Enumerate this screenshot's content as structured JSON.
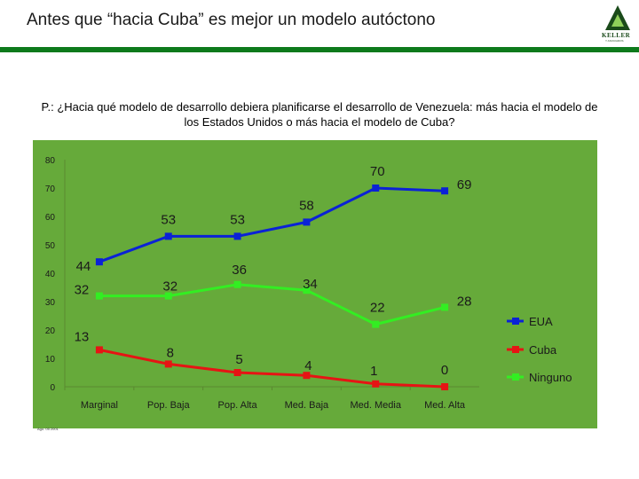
{
  "header": {
    "title": "Antes que “hacia Cuba” es mejor un modelo autóctono",
    "logo_text": "KELLER",
    "logo_sub": "Y ASOCIADOS"
  },
  "question": "P.: ¿Hacia qué modelo de desarrollo debiera planificarse el desarrollo de Venezuela: más hacia el modelo de los Estados Unidos o más hacia el modelo de Cuba?",
  "footnote": "Ago. 05 2001",
  "colors": {
    "eua": "#0b22d6",
    "cuba": "#e61414",
    "ninguno": "#33ee22",
    "panel": "#66aa3a",
    "rule": "#0d7a1c"
  },
  "chart_data": {
    "type": "line",
    "categories": [
      "Marginal",
      "Pop. Baja",
      "Pop. Alta",
      "Med. Baja",
      "Med. Media",
      "Med. Alta"
    ],
    "ylim": [
      0,
      80
    ],
    "yticks": [
      0,
      10,
      20,
      30,
      40,
      50,
      60,
      70,
      80
    ],
    "legend_position": "right",
    "series": [
      {
        "name": "EUA",
        "color": "#0b22d6",
        "values": [
          44,
          53,
          53,
          58,
          70,
          69
        ],
        "labels": [
          "44",
          "53",
          "53",
          "58",
          "70",
          "69"
        ]
      },
      {
        "name": "Cuba",
        "color": "#e61414",
        "values": [
          13,
          8,
          5,
          4,
          1,
          0
        ],
        "labels": [
          "13",
          "8",
          "5",
          "4",
          "1",
          "0"
        ]
      },
      {
        "name": "Ninguno",
        "color": "#33ee22",
        "values": [
          32,
          32,
          36,
          34,
          22,
          28
        ],
        "labels": [
          "32",
          "32",
          "36",
          "34",
          "22",
          "28"
        ]
      }
    ]
  }
}
